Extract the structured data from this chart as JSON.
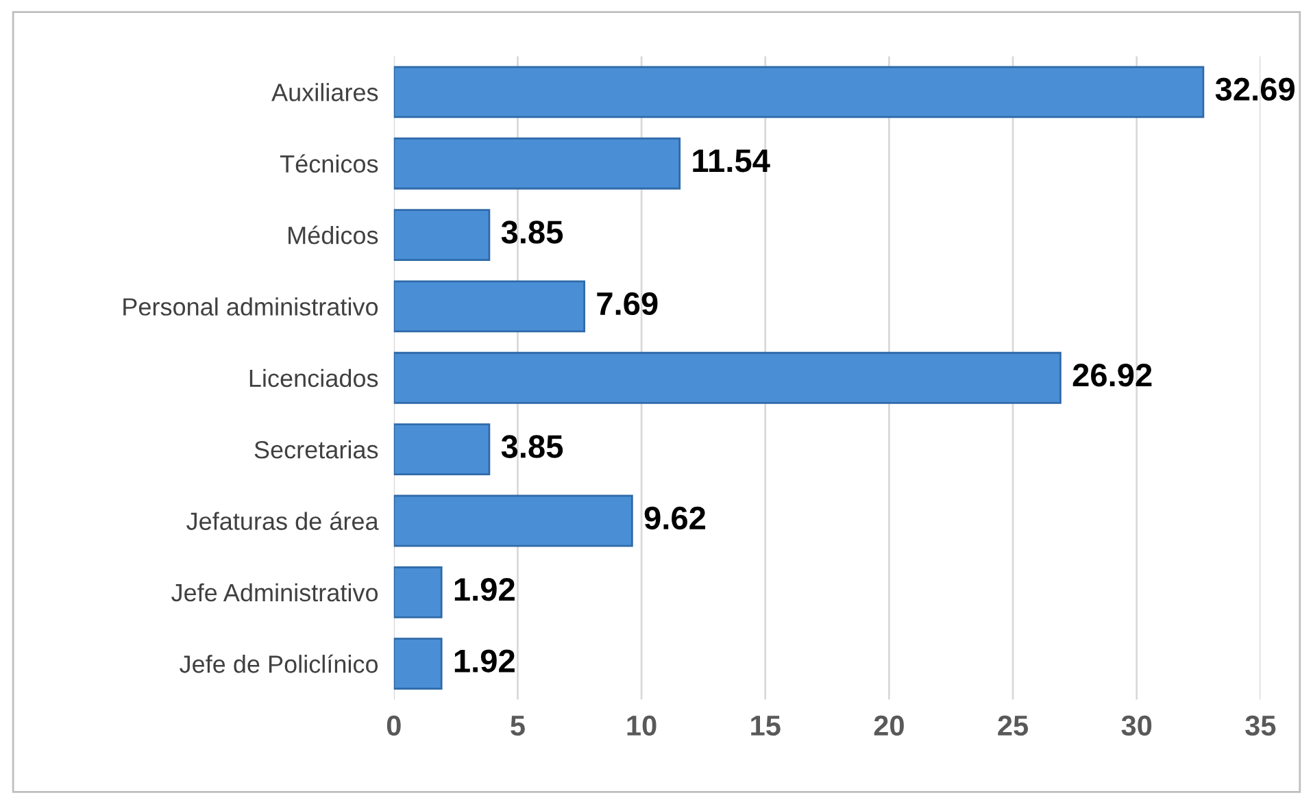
{
  "chart_data": {
    "type": "bar",
    "orientation": "horizontal",
    "categories": [
      "Auxiliares",
      "Técnicos",
      "Médicos",
      "Personal administrativo",
      "Licenciados",
      "Secretarias",
      "Jefaturas de área",
      "Jefe Administrativo",
      "Jefe de Policlínico"
    ],
    "values": [
      32.69,
      11.54,
      3.85,
      7.69,
      26.92,
      3.85,
      9.62,
      1.92,
      1.92
    ],
    "color": "#4a8fd6",
    "xlim": [
      0,
      35
    ],
    "xticks": [
      0,
      5,
      10,
      15,
      20,
      25,
      30,
      35
    ],
    "grid": "x",
    "data_labels": true,
    "legend": false
  }
}
